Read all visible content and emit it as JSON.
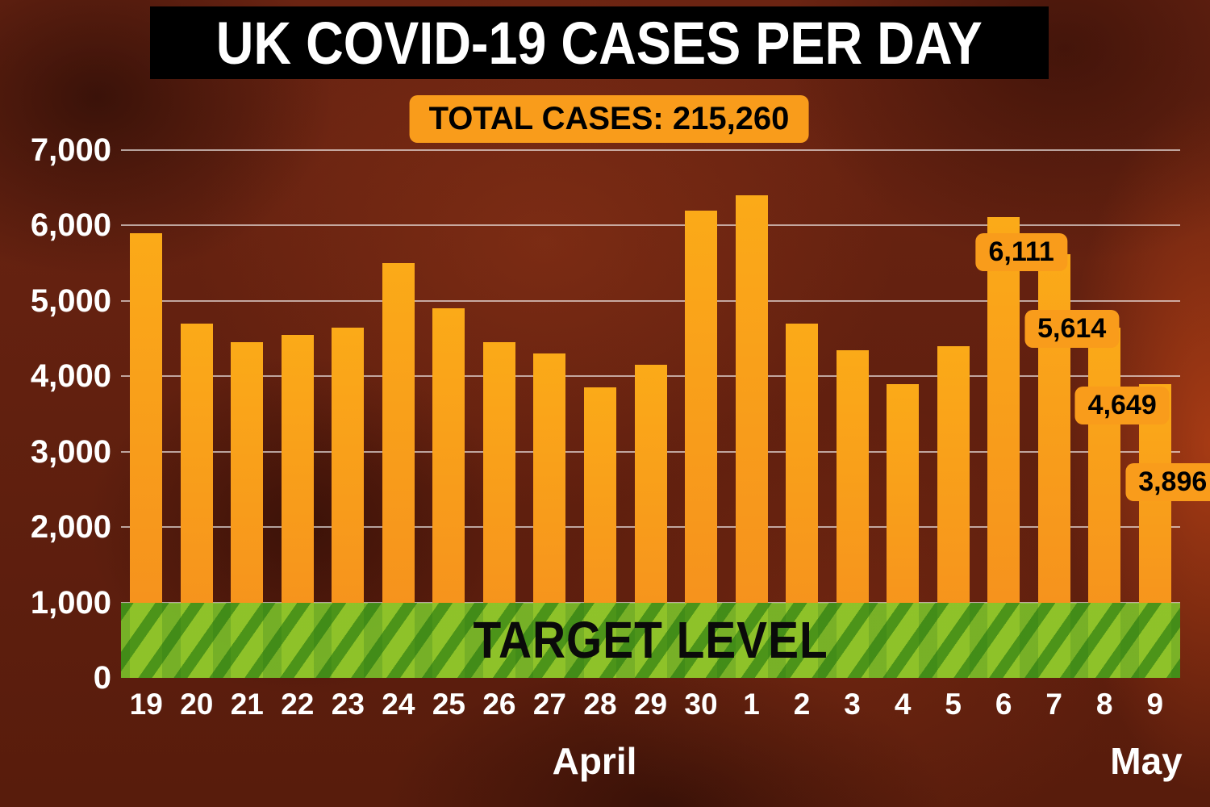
{
  "title": "UK COVID-19 CASES PER DAY",
  "total_badge": "TOTAL CASES: 215,260",
  "target_label": "TARGET LEVEL",
  "months": {
    "april": "April",
    "may": "May"
  },
  "colors": {
    "bar": "#F99C1B",
    "badge_bg": "#F99C1B",
    "banner_bg": "#000000",
    "target_green": "#78C828",
    "text_white": "#FFFFFF",
    "text_black": "#000000",
    "background_rust": "#63200F"
  },
  "chart_data": {
    "type": "bar",
    "title": "UK COVID-19 CASES PER DAY",
    "categories": [
      "19",
      "20",
      "21",
      "22",
      "23",
      "24",
      "25",
      "26",
      "27",
      "28",
      "29",
      "30",
      "1",
      "2",
      "3",
      "4",
      "5",
      "6",
      "7",
      "8",
      "9"
    ],
    "values": [
      5900,
      4700,
      4450,
      4550,
      4650,
      5500,
      4900,
      4450,
      4300,
      3850,
      4150,
      6200,
      6400,
      4700,
      4350,
      3900,
      4400,
      6111,
      5614,
      4649,
      3896
    ],
    "xlabel": "",
    "ylabel": "",
    "ylim": [
      0,
      7000
    ],
    "ytick_labels": [
      "7,000",
      "6,000",
      "5,000",
      "4,000",
      "3,000",
      "2,000",
      "1,000",
      "0"
    ],
    "grid": true,
    "legend": "none",
    "target_level": 1000,
    "target_label": "TARGET LEVEL",
    "month_groups": [
      {
        "label": "April",
        "categories": [
          "19",
          "20",
          "21",
          "22",
          "23",
          "24",
          "25",
          "26",
          "27",
          "28",
          "29",
          "30"
        ]
      },
      {
        "label": "May",
        "categories": [
          "1",
          "2",
          "3",
          "4",
          "5",
          "6",
          "7",
          "8",
          "9"
        ]
      }
    ],
    "annotations": [
      {
        "index": 17,
        "category": "6",
        "label": "6,111",
        "value": 6111
      },
      {
        "index": 18,
        "category": "7",
        "label": "5,614",
        "value": 5614
      },
      {
        "index": 19,
        "category": "8",
        "label": "4,649",
        "value": 4649
      },
      {
        "index": 20,
        "category": "9",
        "label": "3,896",
        "value": 3896
      }
    ]
  }
}
